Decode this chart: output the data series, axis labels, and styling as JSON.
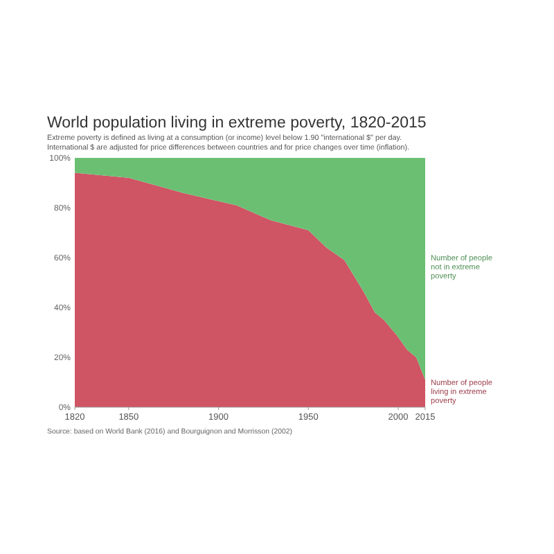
{
  "chart_data": {
    "type": "area",
    "stacked": true,
    "title": "World population living in extreme poverty, 1820-2015",
    "subtitle": "Extreme poverty is defined as living at a consumption (or income) level below 1.90 \"international $\" per day.\nInternational $ are adjusted for price differences between countries and for price changes over time (inflation).",
    "x": [
      1820,
      1850,
      1880,
      1910,
      1929,
      1950,
      1960,
      1970,
      1981,
      1987,
      1992,
      1999,
      2005,
      2010,
      2015
    ],
    "series": [
      {
        "name": "Number of people living in extreme poverty",
        "color": "#cf5464",
        "values": [
          94,
          92,
          86,
          81,
          75,
          71,
          64,
          59,
          46,
          38,
          35,
          29,
          23,
          20,
          11
        ]
      },
      {
        "name": "Number of people not in extreme poverty",
        "color": "#6bbf73",
        "values": [
          6,
          8,
          14,
          19,
          25,
          29,
          36,
          41,
          54,
          62,
          65,
          71,
          77,
          80,
          89
        ]
      }
    ],
    "xlim": [
      1820,
      2015
    ],
    "xticks": [
      1820,
      1850,
      1900,
      1950,
      2000,
      2015
    ],
    "ylim": [
      0,
      100
    ],
    "yticks": [
      {
        "value": 0,
        "label": "0%"
      },
      {
        "value": 20,
        "label": "20%"
      },
      {
        "value": 40,
        "label": "40%"
      },
      {
        "value": 60,
        "label": "60%"
      },
      {
        "value": 80,
        "label": "80%"
      },
      {
        "value": 100,
        "label": "100%"
      }
    ],
    "annotations": [
      "Source: based on World Bank (2016) and Bourguignon and Morrisson (2002)"
    ]
  }
}
